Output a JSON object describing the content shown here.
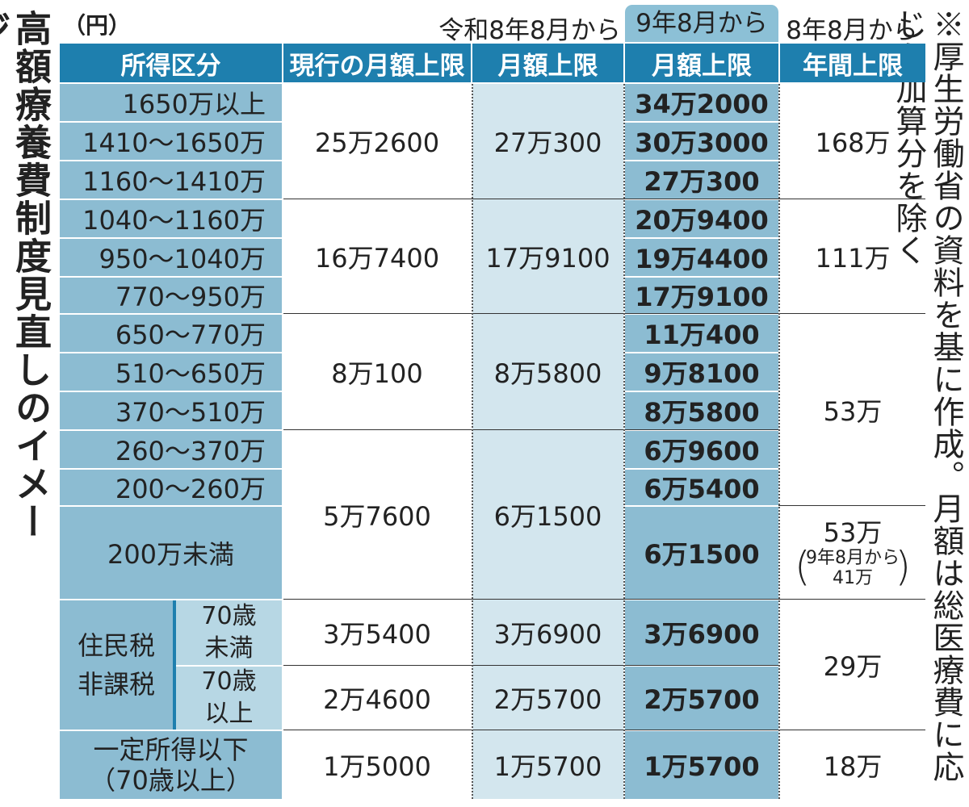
{
  "title": "高額療養費制度見直しのイメージ",
  "unit": "（円）",
  "note": "※厚生労働省の資料を基に作成。月額は総医療費に応じた加算分を除く",
  "periods": {
    "a": "令和8年8月から",
    "b": "9年8月から",
    "c": "8年8月から"
  },
  "headers": {
    "category": "所得区分",
    "current": "現行の月額上限",
    "monthly_a": "月額上限",
    "monthly_b": "月額上限",
    "annual": "年間上限"
  },
  "colors": {
    "header": "#1e7fae",
    "category": "#8cbcd2",
    "light": "#d3e6ee",
    "sub": "#b7d7e4"
  },
  "chart_data": {
    "type": "table",
    "columns": [
      "所得区分",
      "現行の月額上限",
      "令和8年8月から 月額上限",
      "9年8月から 月額上限",
      "8年8月から 年間上限"
    ],
    "groups": [
      {
        "current": "25万2600",
        "monthly_a": "27万300",
        "annual": "168万",
        "rows": [
          {
            "category": "1650万以上",
            "monthly_b": "34万2000"
          },
          {
            "category": "1410〜1650万",
            "monthly_b": "30万3000"
          },
          {
            "category": "1160〜1410万",
            "monthly_b": "27万300"
          }
        ]
      },
      {
        "current": "16万7400",
        "monthly_a": "17万9100",
        "annual": "111万",
        "rows": [
          {
            "category": "1040〜1160万",
            "monthly_b": "20万9400"
          },
          {
            "category": "950〜1040万",
            "monthly_b": "19万4400"
          },
          {
            "category": "770〜950万",
            "monthly_b": "17万9100"
          }
        ]
      },
      {
        "current": "8万100",
        "monthly_a": "8万5800",
        "annual": "53万",
        "rows": [
          {
            "category": "650〜770万",
            "monthly_b": "11万400"
          },
          {
            "category": "510〜650万",
            "monthly_b": "9万8100"
          },
          {
            "category": "370〜510万",
            "monthly_b": "8万5800"
          }
        ]
      },
      {
        "current": "5万7600",
        "monthly_a": "6万1500",
        "rows": [
          {
            "category": "260〜370万",
            "monthly_b": "6万9600"
          },
          {
            "category": "200〜260万",
            "monthly_b": "6万5400"
          },
          {
            "category": "200万未満",
            "monthly_b": "6万1500",
            "annual": "53万",
            "annual_note_l1": "9年8月から",
            "annual_note_l2": "41万"
          }
        ]
      },
      {
        "category": "住民税非課税",
        "category_l1": "住民税",
        "category_l2": "非課税",
        "annual": "29万",
        "rows": [
          {
            "sub_l1": "70歳",
            "sub_l2": "未満",
            "current": "3万5400",
            "monthly_a": "3万6900",
            "monthly_b": "3万6900"
          },
          {
            "sub_l1": "70歳",
            "sub_l2": "以上",
            "current": "2万4600",
            "monthly_a": "2万5700",
            "monthly_b": "2万5700"
          }
        ]
      },
      {
        "category_l1": "一定所得以下",
        "category_l2": "（70歳以上）",
        "current": "1万5000",
        "monthly_a": "1万5700",
        "monthly_b": "1万5700",
        "annual": "18万"
      }
    ]
  }
}
